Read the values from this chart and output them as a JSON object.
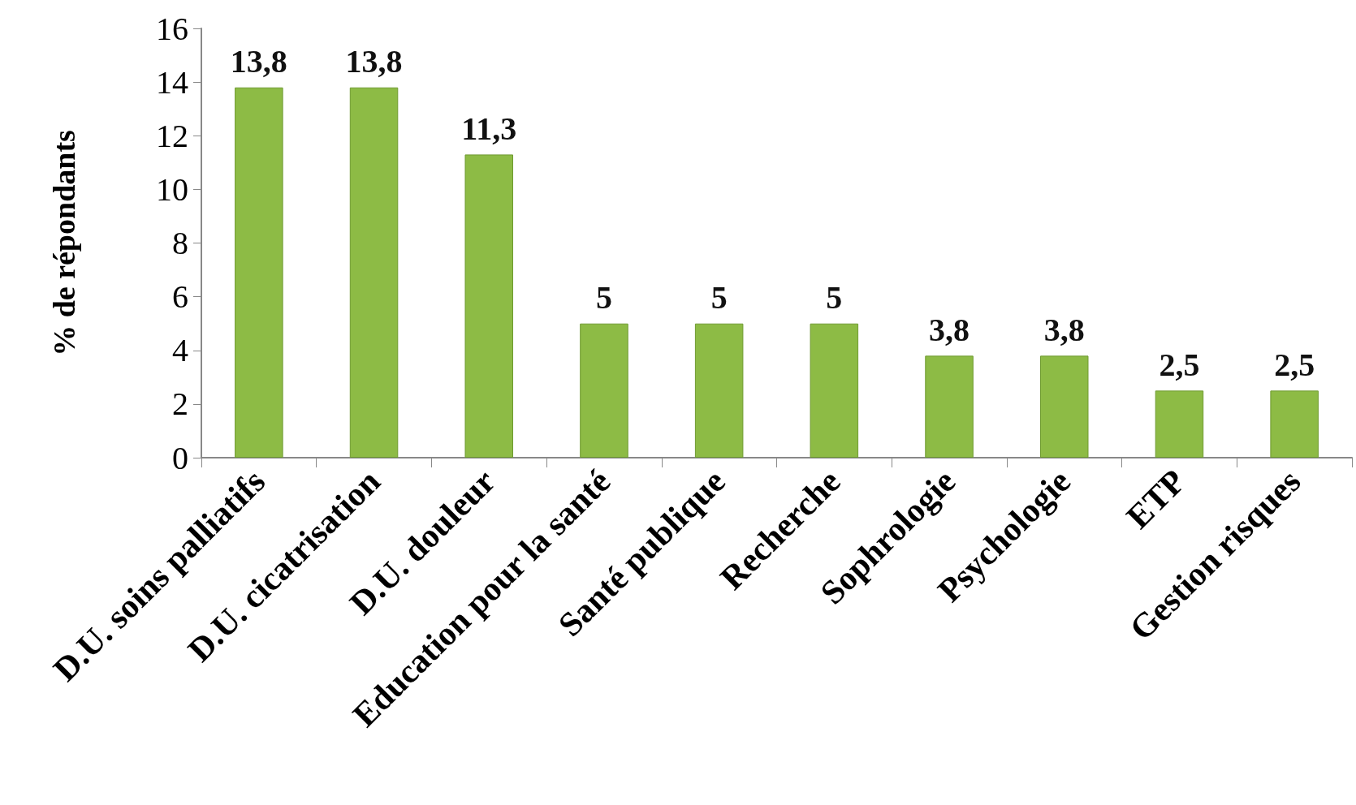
{
  "chart_data": {
    "type": "bar",
    "ylabel": "% de répondants",
    "categories": [
      "D.U. soins palliatifs",
      "D.U. cicatrisation",
      "D.U. douleur",
      "Education pour la santé",
      "Santé publique",
      "Recherche",
      "Sophrologie",
      "Psychologie",
      "ETP",
      "Gestion risques"
    ],
    "values": [
      13.8,
      13.8,
      11.3,
      5,
      5,
      5,
      3.8,
      3.8,
      2.5,
      2.5
    ],
    "value_labels": [
      "13,8",
      "13,8",
      "11,3",
      "5",
      "5",
      "5",
      "3,8",
      "3,8",
      "2,5",
      "2,5"
    ],
    "color": "#8dbb45",
    "ylim": [
      0,
      16
    ],
    "yticks": [
      0,
      2,
      4,
      6,
      8,
      10,
      12,
      14,
      16
    ],
    "grid": false
  }
}
